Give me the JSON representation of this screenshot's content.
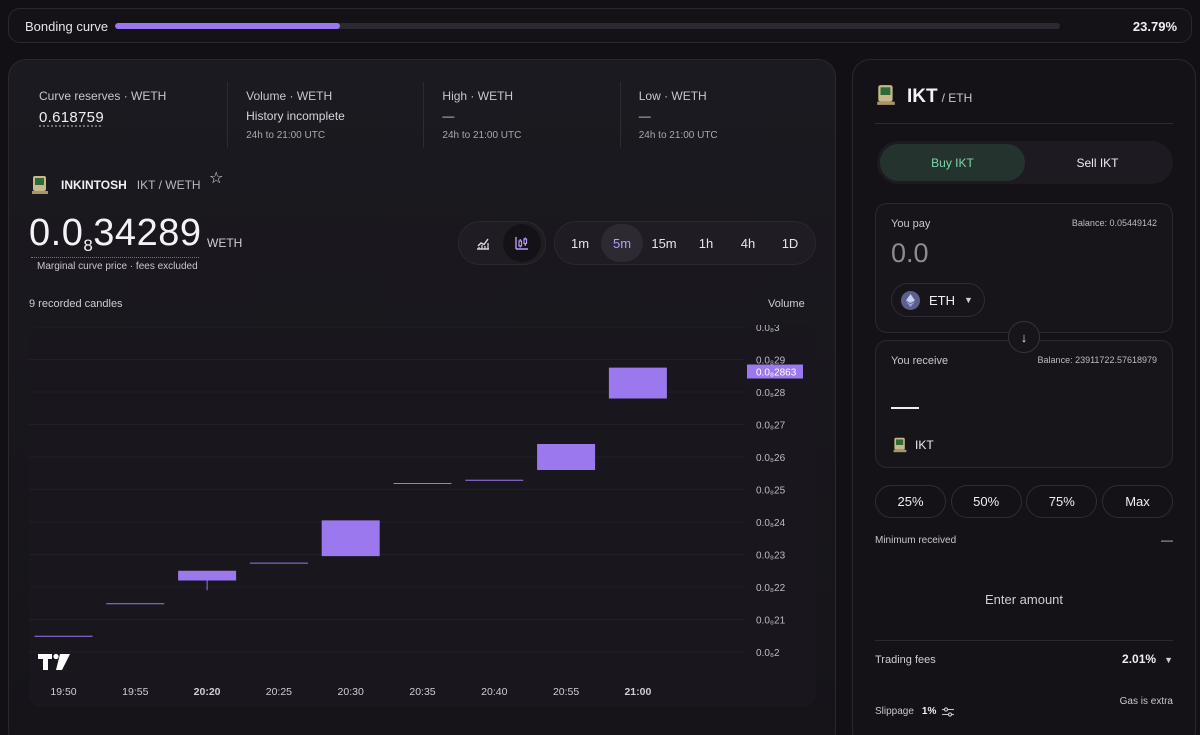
{
  "bonding": {
    "label": "Bonding curve",
    "percent": "23.79%",
    "fill": 0.2379
  },
  "stats": [
    {
      "title": "Curve reserves · WETH",
      "value": "0.618759"
    },
    {
      "title": "Volume · WETH",
      "value": "History incomplete",
      "sub": "24h to 21:00 UTC"
    },
    {
      "title": "High · WETH",
      "value": "—",
      "sub": "24h to 21:00 UTC"
    },
    {
      "title": "Low · WETH",
      "value": "—",
      "sub": "24h to 21:00 UTC"
    }
  ],
  "token": {
    "name": "INKINTOSH",
    "pair": "IKT / WETH",
    "star_icon": "star-icon"
  },
  "price": {
    "lead": "0.0",
    "zeros": "8",
    "digits": "34289",
    "unit": "WETH",
    "note": "Marginal curve price · fees excluded"
  },
  "chart_controls": {
    "types": [
      "line-chart-icon",
      "candle-chart-icon"
    ],
    "active_type": 1,
    "intervals": [
      "1m",
      "5m",
      "15m",
      "1h",
      "4h",
      "1D"
    ],
    "active_interval": 1
  },
  "candles_count": "9 recorded candles",
  "volume_label": "Volume",
  "chart_data": {
    "type": "candlestick",
    "x": [
      "19:50",
      "19:55",
      "20:20",
      "20:25",
      "20:30",
      "20:35",
      "20:40",
      "20:55",
      "21:00"
    ],
    "x_bold": [
      false,
      false,
      true,
      false,
      false,
      false,
      false,
      false,
      true
    ],
    "candles": [
      {
        "open": 20.5,
        "close": 20.5,
        "low": 20.5,
        "high": 20.5
      },
      {
        "open": 21.5,
        "close": 21.5,
        "low": 21.5,
        "high": 21.5
      },
      {
        "open": 22.2,
        "close": 22.5,
        "low": 21.9,
        "high": 22.5
      },
      {
        "open": 22.75,
        "close": 22.75,
        "low": 22.75,
        "high": 22.75
      },
      {
        "open": 22.95,
        "close": 24.05,
        "low": 22.95,
        "high": 24.05
      },
      {
        "open": 25.2,
        "close": 25.2,
        "low": 25.2,
        "high": 25.2
      },
      {
        "open": 25.3,
        "close": 25.3,
        "low": 25.3,
        "high": 25.3
      },
      {
        "open": 25.6,
        "close": 26.4,
        "low": 25.6,
        "high": 26.4
      },
      {
        "open": 27.8,
        "close": 28.75,
        "low": 27.8,
        "high": 28.75
      }
    ],
    "y_ticks": [
      "0.0₈3",
      "0.0₈29",
      "0.0₈28",
      "0.0₈27",
      "0.0₈26",
      "0.0₈25",
      "0.0₈24",
      "0.0₈23",
      "0.0₈22",
      "0.0₈21",
      "0.0₈2"
    ],
    "ylim": [
      20,
      30
    ],
    "last_price_label": "0.0₈2863",
    "last_price": 28.63,
    "color": "#9b78ee",
    "logo_icon": "tradingview-logo-icon"
  },
  "trade": {
    "symbol": "IKT",
    "pair": "/ ETH",
    "tabs": [
      "Buy IKT",
      "Sell IKT"
    ],
    "active_tab": 0,
    "pay": {
      "label": "You pay",
      "balance": "Balance: 0.05449142",
      "amount": "0.0",
      "currency": "ETH"
    },
    "receive": {
      "label": "You receive",
      "balance": "Balance: 23911722.57618979",
      "currency": "IKT"
    },
    "percent_buttons": [
      "25%",
      "50%",
      "75%",
      "Max"
    ],
    "min_received": {
      "label": "Minimum received",
      "value": "—"
    },
    "enter_amount": "Enter amount",
    "fees": {
      "label": "Trading fees",
      "value": "2.01%"
    },
    "gas": "Gas is extra",
    "slippage": {
      "label": "Slippage",
      "value": "1%"
    }
  }
}
